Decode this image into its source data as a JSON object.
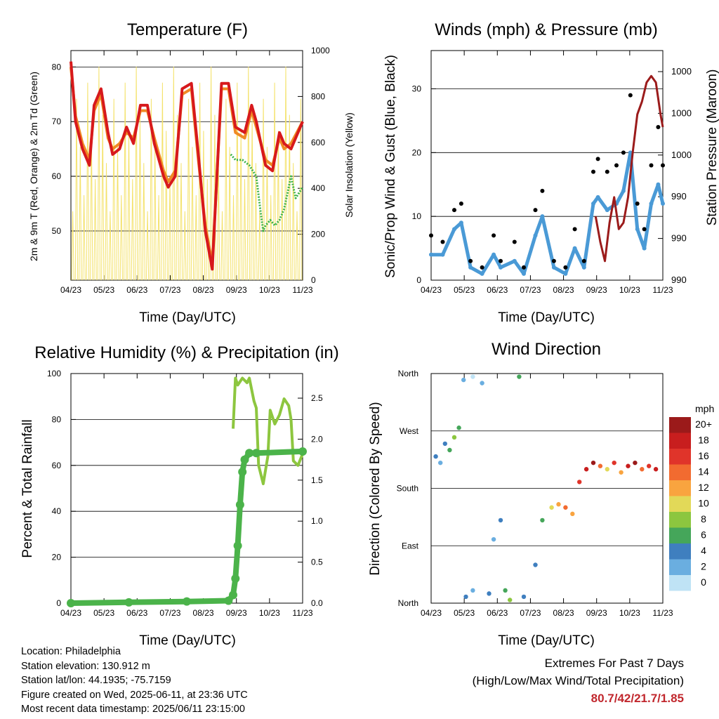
{
  "colors": {
    "temp_2m": "#d7191c",
    "temp_9m": "#f08a24",
    "dewpoint": "#3db34a",
    "solar": "#f4e26b",
    "wind": "#4a9ad6",
    "gust": "#000000",
    "pressure": "#9b1b1b",
    "rh": "#8dc63f",
    "precip": "#4bb34a"
  },
  "date_ticks": [
    "04/23",
    "05/23",
    "06/23",
    "07/23",
    "08/23",
    "09/23",
    "10/23",
    "11/23"
  ],
  "speed_bins": [
    {
      "label": "20+",
      "color": "#9b1a1a"
    },
    {
      "label": "18",
      "color": "#c81e1e"
    },
    {
      "label": "16",
      "color": "#e0342a"
    },
    {
      "label": "14",
      "color": "#f26b30"
    },
    {
      "label": "12",
      "color": "#f9a43f"
    },
    {
      "label": "10",
      "color": "#e2d958"
    },
    {
      "label": "8",
      "color": "#8cc63f"
    },
    {
      "label": "6",
      "color": "#45a65a"
    },
    {
      "label": "4",
      "color": "#3f7fbf"
    },
    {
      "label": "2",
      "color": "#6aaee0"
    },
    {
      "label": "0",
      "color": "#bfe3f5"
    }
  ],
  "chart_data": [
    {
      "type": "line",
      "title": "Temperature (F)",
      "xlabel": "Time (Day/UTC)",
      "ylabel": "2m & 9m T (Red, Orange) & 2m Td (Green)",
      "y2label": "Solar Insolation (Yellow)",
      "ylim": [
        41,
        83
      ],
      "y_ticks": [
        50,
        60,
        70,
        80
      ],
      "y2lim": [
        0,
        1000
      ],
      "y2_ticks": [
        0,
        200,
        400,
        600,
        800,
        1000
      ],
      "x_range": [
        "04/23",
        "11/23"
      ],
      "series": [
        {
          "name": "2m T",
          "x": [
            0,
            2,
            5,
            8,
            10,
            13,
            16,
            18,
            21,
            24,
            27,
            30,
            33,
            36,
            40,
            42,
            45,
            48,
            52,
            55,
            58,
            61,
            65,
            68,
            71,
            75,
            78,
            80,
            84,
            87,
            90,
            92,
            95,
            100
          ],
          "values": [
            81,
            70,
            65,
            62,
            73,
            76,
            68,
            64,
            65,
            69,
            66,
            73,
            73,
            66,
            60,
            58,
            60,
            76,
            77,
            64,
            50,
            43,
            77,
            77,
            69,
            68,
            73,
            70,
            62,
            61,
            68,
            66,
            65,
            70
          ]
        },
        {
          "name": "9m T",
          "x": [
            0,
            2,
            5,
            8,
            10,
            13,
            16,
            18,
            21,
            24,
            27,
            30,
            33,
            36,
            40,
            42,
            45,
            48,
            52,
            55,
            58,
            61,
            65,
            68,
            71,
            75,
            78,
            80,
            84,
            87,
            90,
            92,
            95,
            100
          ],
          "values": [
            80,
            71,
            66,
            63,
            72,
            75,
            67,
            65,
            66,
            68,
            67,
            72,
            72,
            67,
            61,
            59,
            61,
            75,
            76,
            63,
            51,
            44,
            76,
            76,
            68,
            67,
            72,
            69,
            63,
            62,
            67,
            65,
            66,
            70
          ]
        },
        {
          "name": "2m Td",
          "x": [
            69,
            71,
            74,
            77,
            80,
            82,
            83,
            84,
            86,
            88,
            90,
            92,
            95,
            97,
            100
          ],
          "values": [
            64,
            63,
            63,
            62,
            60,
            53,
            50,
            51,
            52,
            51,
            52,
            54,
            60,
            56,
            58
          ]
        },
        {
          "name": "Solar",
          "x": [],
          "values": []
        }
      ]
    },
    {
      "type": "scatter",
      "title": "Winds (mph) & Pressure (mb)",
      "xlabel": "Time (Day/UTC)",
      "ylabel": "Sonic/Prop Wind & Gust (Blue, Black)",
      "y2label": "Station Pressure (Maroon)",
      "ylim": [
        0,
        36
      ],
      "y_ticks": [
        0,
        10,
        20,
        30
      ],
      "y2_tick_labels": [
        "990",
        "990",
        "990",
        "1000",
        "1000",
        "1000"
      ],
      "x_range": [
        "04/23",
        "11/23"
      ],
      "series": [
        {
          "name": "Wind",
          "x": [
            0,
            5,
            10,
            13,
            17,
            22,
            27,
            30,
            36,
            40,
            45,
            48,
            53,
            58,
            62,
            66,
            70,
            72,
            76,
            80,
            83,
            86,
            89,
            92,
            95,
            98,
            100
          ],
          "values": [
            4,
            4,
            8,
            9,
            2,
            1,
            4,
            2,
            3,
            1,
            7,
            10,
            2,
            1,
            5,
            2,
            12,
            13,
            11,
            12,
            14,
            20,
            8,
            5,
            12,
            15,
            12
          ]
        },
        {
          "name": "Gust",
          "x": [
            0,
            5,
            10,
            13,
            17,
            22,
            27,
            30,
            36,
            40,
            45,
            48,
            53,
            58,
            62,
            66,
            70,
            72,
            76,
            80,
            83,
            86,
            89,
            92,
            95,
            98,
            100
          ],
          "values": [
            7,
            6,
            11,
            12,
            3,
            2,
            7,
            3,
            6,
            2,
            11,
            14,
            3,
            2,
            8,
            3,
            17,
            19,
            17,
            18,
            20,
            29,
            12,
            8,
            18,
            24,
            18
          ]
        },
        {
          "name": "Pressure",
          "x": [
            71,
            73,
            75,
            77,
            79,
            81,
            83,
            85,
            87,
            89,
            91,
            93,
            95,
            97,
            99,
            100
          ],
          "values": [
            10,
            6,
            3,
            9,
            13,
            8,
            9,
            13,
            20,
            26,
            28,
            31,
            32,
            31,
            26,
            24
          ]
        }
      ]
    },
    {
      "type": "line",
      "title": "Relative Humidity (%) & Precipitation (in)",
      "xlabel": "Time (Day/UTC)",
      "ylabel": "Percent & Total Rainfall",
      "ylim": [
        0,
        100
      ],
      "y_ticks": [
        0,
        20,
        40,
        60,
        80,
        100
      ],
      "y2lim": [
        0,
        2.8
      ],
      "y2_ticks": [
        "0.0",
        "0.5",
        "1.0",
        "1.5",
        "2.0",
        "2.5"
      ],
      "x_range": [
        "04/23",
        "11/23"
      ],
      "series": [
        {
          "name": "RH",
          "x": [
            70,
            71,
            72,
            74,
            76,
            77,
            79,
            80,
            81,
            83,
            85,
            86,
            88,
            90,
            92,
            94,
            95,
            96,
            98,
            100
          ],
          "values": [
            76,
            98,
            95,
            98,
            96,
            98,
            88,
            85,
            60,
            52,
            64,
            84,
            78,
            82,
            89,
            86,
            80,
            62,
            60,
            65
          ]
        },
        {
          "name": "Precipitation",
          "x": [
            0,
            25,
            50,
            68,
            70,
            71,
            72,
            73,
            74,
            75,
            77,
            80,
            100
          ],
          "values": [
            0,
            0.01,
            0.02,
            0.03,
            0.1,
            0.3,
            0.7,
            1.2,
            1.6,
            1.75,
            1.83,
            1.83,
            1.85
          ]
        }
      ]
    },
    {
      "type": "scatter",
      "title": "Wind Direction",
      "xlabel": "Time (Day/UTC)",
      "ylabel": "Direction (Colored By Speed)",
      "legend_title": "mph",
      "y_tick_labels": [
        "North",
        "East",
        "South",
        "West",
        "North"
      ],
      "x_range": [
        "04/23",
        "11/23"
      ],
      "points": [
        {
          "x": 2,
          "dir": 230,
          "speed": 4
        },
        {
          "x": 4,
          "dir": 220,
          "speed": 2
        },
        {
          "x": 6,
          "dir": 250,
          "speed": 4
        },
        {
          "x": 8,
          "dir": 240,
          "speed": 6
        },
        {
          "x": 10,
          "dir": 260,
          "speed": 8
        },
        {
          "x": 12,
          "dir": 275,
          "speed": 6
        },
        {
          "x": 14,
          "dir": 350,
          "speed": 2
        },
        {
          "x": 18,
          "dir": 355,
          "speed": 0
        },
        {
          "x": 22,
          "dir": 345,
          "speed": 2
        },
        {
          "x": 15,
          "dir": 10,
          "speed": 4
        },
        {
          "x": 18,
          "dir": 20,
          "speed": 2
        },
        {
          "x": 25,
          "dir": 15,
          "speed": 4
        },
        {
          "x": 27,
          "dir": 100,
          "speed": 2
        },
        {
          "x": 30,
          "dir": 130,
          "speed": 4
        },
        {
          "x": 32,
          "dir": 20,
          "speed": 6
        },
        {
          "x": 34,
          "dir": 5,
          "speed": 8
        },
        {
          "x": 38,
          "dir": 355,
          "speed": 6
        },
        {
          "x": 40,
          "dir": 10,
          "speed": 4
        },
        {
          "x": 45,
          "dir": 60,
          "speed": 4
        },
        {
          "x": 48,
          "dir": 130,
          "speed": 6
        },
        {
          "x": 52,
          "dir": 150,
          "speed": 10
        },
        {
          "x": 55,
          "dir": 155,
          "speed": 12
        },
        {
          "x": 58,
          "dir": 150,
          "speed": 14
        },
        {
          "x": 61,
          "dir": 140,
          "speed": 12
        },
        {
          "x": 64,
          "dir": 190,
          "speed": 16
        },
        {
          "x": 67,
          "dir": 210,
          "speed": 18
        },
        {
          "x": 70,
          "dir": 220,
          "speed": 20
        },
        {
          "x": 73,
          "dir": 215,
          "speed": 14
        },
        {
          "x": 76,
          "dir": 210,
          "speed": 10
        },
        {
          "x": 79,
          "dir": 220,
          "speed": 16
        },
        {
          "x": 82,
          "dir": 205,
          "speed": 12
        },
        {
          "x": 85,
          "dir": 215,
          "speed": 18
        },
        {
          "x": 88,
          "dir": 220,
          "speed": 20
        },
        {
          "x": 91,
          "dir": 210,
          "speed": 14
        },
        {
          "x": 94,
          "dir": 215,
          "speed": 16
        },
        {
          "x": 97,
          "dir": 210,
          "speed": 18
        }
      ]
    }
  ],
  "info": {
    "location": "Location: Philadelphia",
    "elevation": "Station elevation: 130.912 m",
    "latlon": "Station lat/lon: 44.1935; -75.7159",
    "created": "Figure created on Wed, 2025-06-11, at 23:36 UTC",
    "latest": "Most recent data timestamp: 2025/06/11 23:15:00"
  },
  "extremes": {
    "title": "Extremes For Past 7 Days",
    "subtitle": "(High/Low/Max Wind/Total Precipitation)",
    "values": "80.7/42/21.7/1.85"
  }
}
